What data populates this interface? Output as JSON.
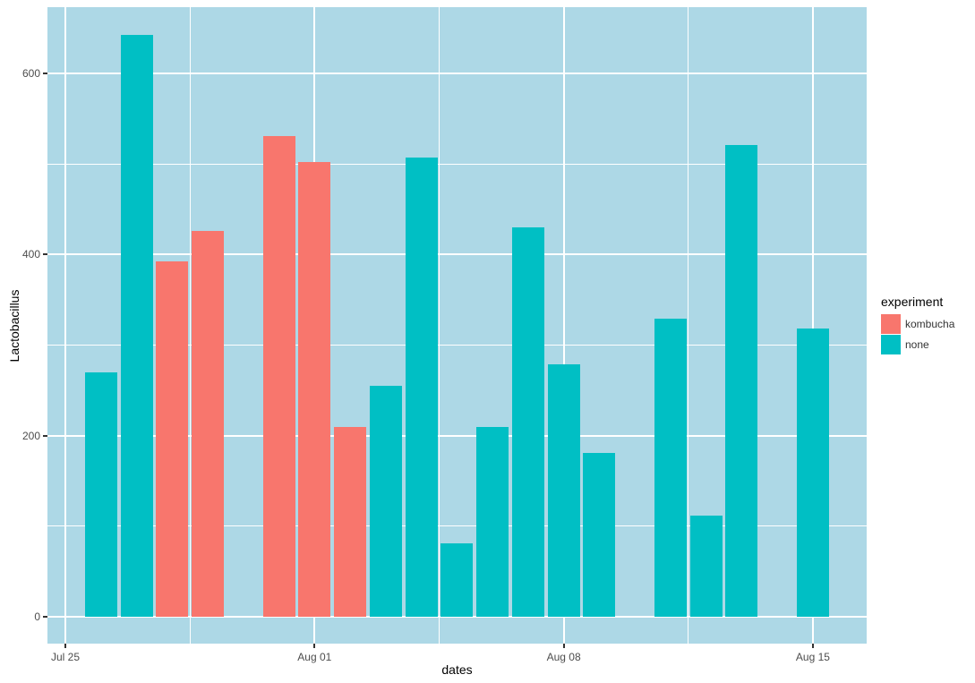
{
  "chart_data": {
    "type": "bar",
    "title": "",
    "xlabel": "dates",
    "ylabel": "Lactobacillus",
    "x_axis": {
      "tick_labels": [
        "Jul 25",
        "Aug 01",
        "Aug 08",
        "Aug 15"
      ],
      "tick_days": [
        0,
        7,
        14,
        21
      ],
      "minor_days": [
        3.5,
        10.5,
        17.5
      ]
    },
    "y_axis": {
      "tick_labels": [
        "0",
        "200",
        "400",
        "600"
      ],
      "tick_values": [
        0,
        200,
        400,
        600
      ],
      "minor_values": [
        100,
        300,
        500
      ],
      "ylim": [
        -32,
        673
      ]
    },
    "grid": "on",
    "legend": {
      "title": "experiment",
      "position": "right",
      "entries": [
        {
          "label": "kombucha",
          "color": "#F8766D"
        },
        {
          "label": "none",
          "color": "#00BFC4"
        }
      ]
    },
    "bars": [
      {
        "date": "Jul 26",
        "day": 1,
        "group": "none",
        "value": 270
      },
      {
        "date": "Jul 27",
        "day": 2,
        "group": "none",
        "value": 642
      },
      {
        "date": "Jul 28",
        "day": 3,
        "group": "kombucha",
        "value": 392
      },
      {
        "date": "Jul 29",
        "day": 4,
        "group": "kombucha",
        "value": 426
      },
      {
        "date": "Jul 31",
        "day": 6,
        "group": "kombucha",
        "value": 531
      },
      {
        "date": "Aug 01",
        "day": 7,
        "group": "kombucha",
        "value": 502
      },
      {
        "date": "Aug 02",
        "day": 8,
        "group": "kombucha",
        "value": 210
      },
      {
        "date": "Aug 03",
        "day": 9,
        "group": "none",
        "value": 255
      },
      {
        "date": "Aug 04",
        "day": 10,
        "group": "none",
        "value": 507
      },
      {
        "date": "Aug 05",
        "day": 11,
        "group": "none",
        "value": 81
      },
      {
        "date": "Aug 06",
        "day": 12,
        "group": "none",
        "value": 210
      },
      {
        "date": "Aug 07",
        "day": 13,
        "group": "none",
        "value": 430
      },
      {
        "date": "Aug 08",
        "day": 14,
        "group": "none",
        "value": 279
      },
      {
        "date": "Aug 09",
        "day": 15,
        "group": "none",
        "value": 181
      },
      {
        "date": "Aug 11",
        "day": 17,
        "group": "none",
        "value": 329
      },
      {
        "date": "Aug 12",
        "day": 18,
        "group": "none",
        "value": 112
      },
      {
        "date": "Aug 13",
        "day": 19,
        "group": "none",
        "value": 521
      },
      {
        "date": "Aug 15",
        "day": 21,
        "group": "none",
        "value": 318
      }
    ],
    "colors": {
      "panel_background": "#ADD8E6",
      "gridline": "#FFFFFF",
      "tick_mark": "#333333",
      "tick_text": "#4D4D4D",
      "title_text": "#000000"
    }
  }
}
